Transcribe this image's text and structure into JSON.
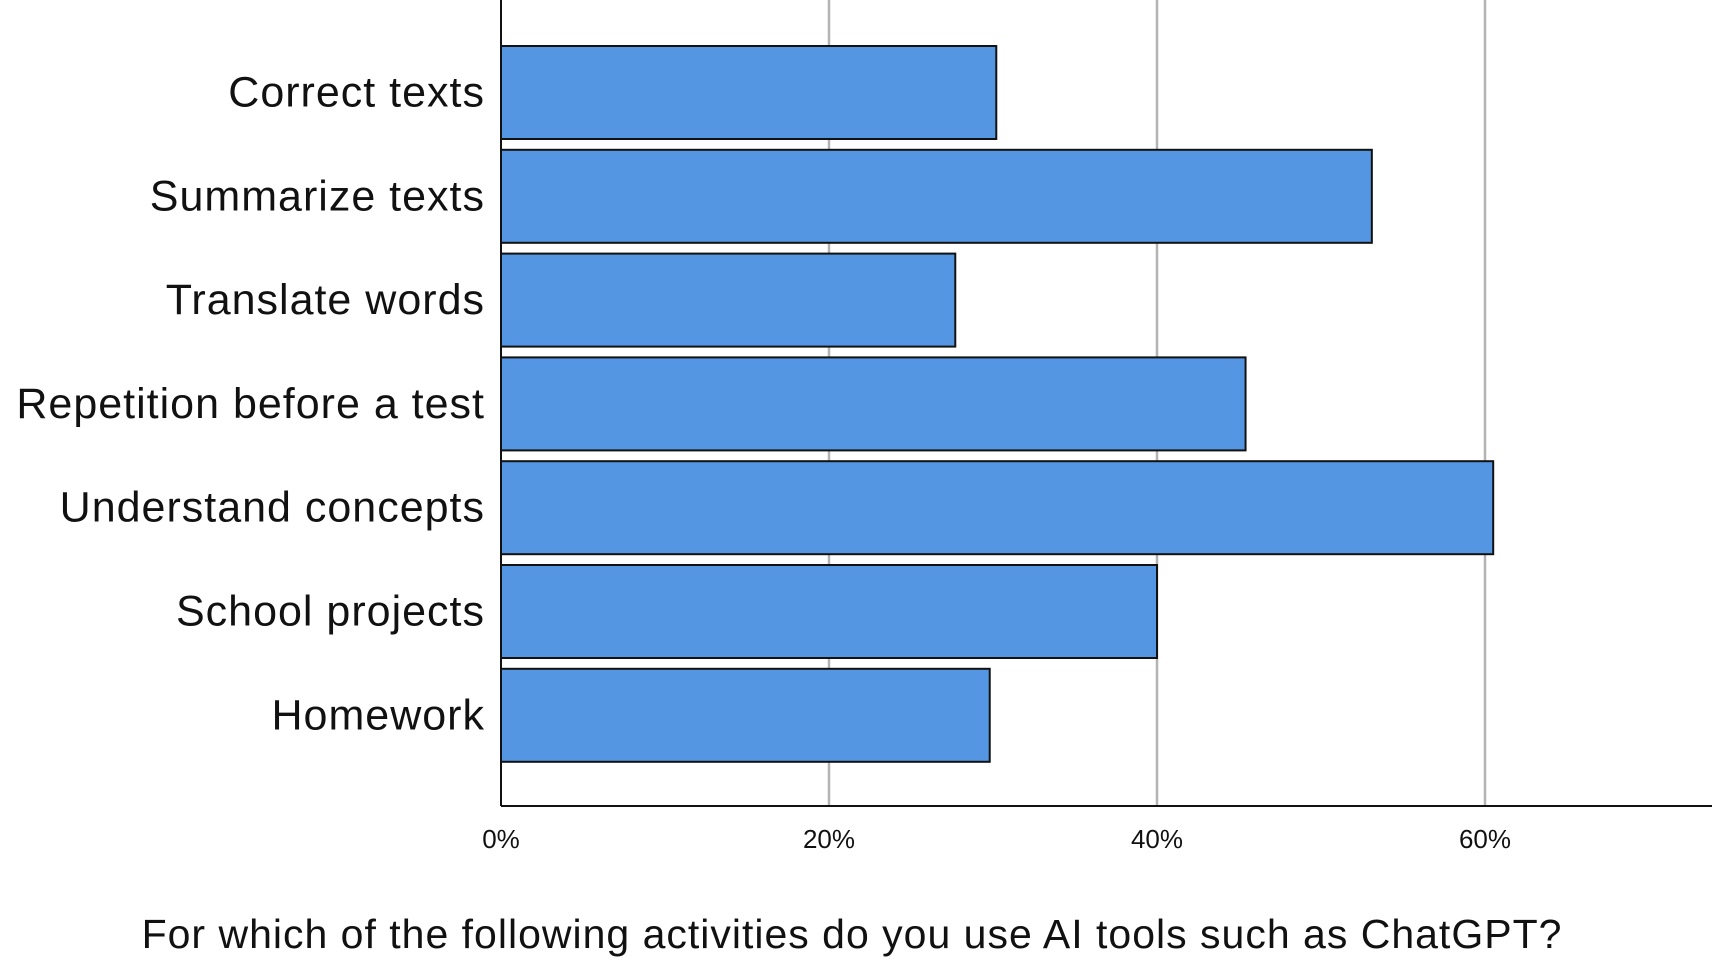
{
  "chart_data": {
    "type": "bar",
    "orientation": "horizontal",
    "categories": [
      "Correct texts",
      "Summarize texts",
      "Translate words",
      "Repetition before a test",
      "Understand concepts",
      "School projects",
      "Homework"
    ],
    "values": [
      30.2,
      53.1,
      27.7,
      45.4,
      60.5,
      40.0,
      29.8
    ],
    "xlabel": "For which of the following activities do you use AI tools such as ChatGPT?",
    "ylabel": "",
    "xlim": [
      0,
      73
    ],
    "xticks": [
      0,
      20,
      40,
      60
    ],
    "xtick_labels": [
      "0%",
      "20%",
      "40%",
      "60%"
    ],
    "grid": "vertical",
    "legend": "none",
    "bar_color": "#5596e3"
  }
}
